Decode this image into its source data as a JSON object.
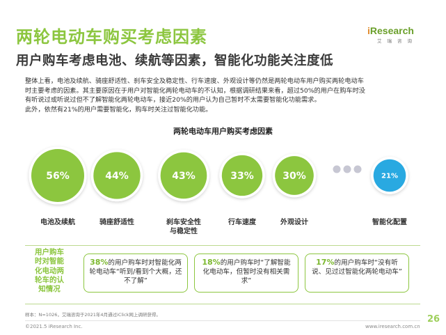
{
  "title": "两轮电动车购买考虑因素",
  "subtitle": "用户购车考虑电池、续航等因素，智能化功能关注度低",
  "logo": {
    "brand": "iResearch",
    "brand_i": "i",
    "brand_rest": "Research",
    "cn": "艾瑞咨询"
  },
  "intro": [
    "整体上看，电池及续航、骑座舒适性、刹车安全及稳定性、行车速度、外观设计等仍然是两轮电动车用户购买两轮电动车",
    "时主要考虑的因素。其主要原因在于用户对智能化两轮电动车的不认知，根据调研结果来看，超过50%的用户在购车时没",
    "有听说过或听说过但不了解智能化两轮电动车，接近20%的用户认为自己暂时不太需要智能化功能需求。",
    "此外，依然有21%的用户需要智能化，购车时关注过智能化功能。"
  ],
  "colors": {
    "accent": "#8cc63f",
    "blue": "#29a9e1",
    "gray": "#c7c7d3"
  },
  "chart_data": {
    "type": "bubble",
    "title": "两轮电动车用户购买考虑因素",
    "categories": [
      "电池及续航",
      "骑座舒适性",
      "刹车安全性与稳定性",
      "行车速度",
      "外观设计",
      "智能化配置"
    ],
    "values": [
      56,
      44,
      43,
      33,
      30,
      21
    ],
    "display": [
      "56%",
      "44%",
      "43%",
      "33%",
      "30%",
      "21%"
    ],
    "label_lines": [
      [
        "电池及续航"
      ],
      [
        "骑座舒适性"
      ],
      [
        "刹车安全性",
        "与稳定性"
      ],
      [
        "行车速度"
      ],
      [
        "外观设计"
      ],
      [
        "智能化配置"
      ]
    ],
    "ellipsis": "•••"
  },
  "awareness": {
    "label_lines": [
      "用户购车",
      "时对智能",
      "化电动两",
      "轮车的认",
      "知情况"
    ],
    "cards": [
      {
        "pct": "38%",
        "text": "的用户购车时对智能化两轮电动车“听到/看到个大概，还不了解”"
      },
      {
        "pct": "18%",
        "text": "的用户购车时“了解智能化电动车，但暂时没有相关需求”"
      },
      {
        "pct": "17%",
        "text": "的用户购车时“没有听说、见过过智能化两轮电动车”"
      }
    ]
  },
  "footer": {
    "source": "样本：N=1026，艾瑞咨询于2021年4月通过iClick网上调研获得。",
    "copyright": "©2021.5 iResearch Inc.",
    "website": "www.iresearch.com.cn",
    "page": "26"
  }
}
